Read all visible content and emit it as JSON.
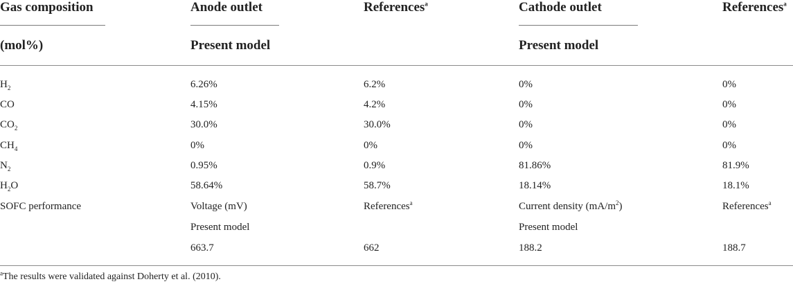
{
  "header": {
    "gas_composition": "Gas composition",
    "mol_unit": "(mol%)",
    "anode_outlet": "Anode outlet",
    "cathode_outlet": "Cathode outlet",
    "present_model": "Present model",
    "references": "References",
    "ref_mark": "a"
  },
  "rows": [
    {
      "base": "H",
      "sub": "2",
      "post": "",
      "anode": "6.26%",
      "anode_ref": "6.2%",
      "cathode": "0%",
      "cathode_ref": "0%"
    },
    {
      "base": "CO",
      "sub": "",
      "post": "",
      "anode": "4.15%",
      "anode_ref": "4.2%",
      "cathode": "0%",
      "cathode_ref": "0%"
    },
    {
      "base": "CO",
      "sub": "2",
      "post": "",
      "anode": "30.0%",
      "anode_ref": "30.0%",
      "cathode": "0%",
      "cathode_ref": "0%"
    },
    {
      "base": "CH",
      "sub": "4",
      "post": "",
      "anode": "0%",
      "anode_ref": "0%",
      "cathode": "0%",
      "cathode_ref": "0%"
    },
    {
      "base": "N",
      "sub": "2",
      "post": "",
      "anode": "0.95%",
      "anode_ref": "0.9%",
      "cathode": "81.86%",
      "cathode_ref": "81.9%"
    },
    {
      "base": "H",
      "sub": "2",
      "post": "O",
      "anode": "58.64%",
      "anode_ref": "58.7%",
      "cathode": "18.14%",
      "cathode_ref": "18.1%"
    }
  ],
  "sofc": {
    "label": "SOFC performance",
    "voltage_label": "Voltage (mV)",
    "current_pre": "Current density (mA/m",
    "current_sup": "2",
    "current_post": ")",
    "references": "References",
    "ref_mark": "a",
    "present_model": "Present model",
    "voltage_model": "663.7",
    "voltage_ref": "662",
    "current_model": "188.2",
    "current_ref": "188.7"
  },
  "footnote": {
    "mark": "a",
    "text": "The results were validated against Doherty et al. (2010)."
  }
}
